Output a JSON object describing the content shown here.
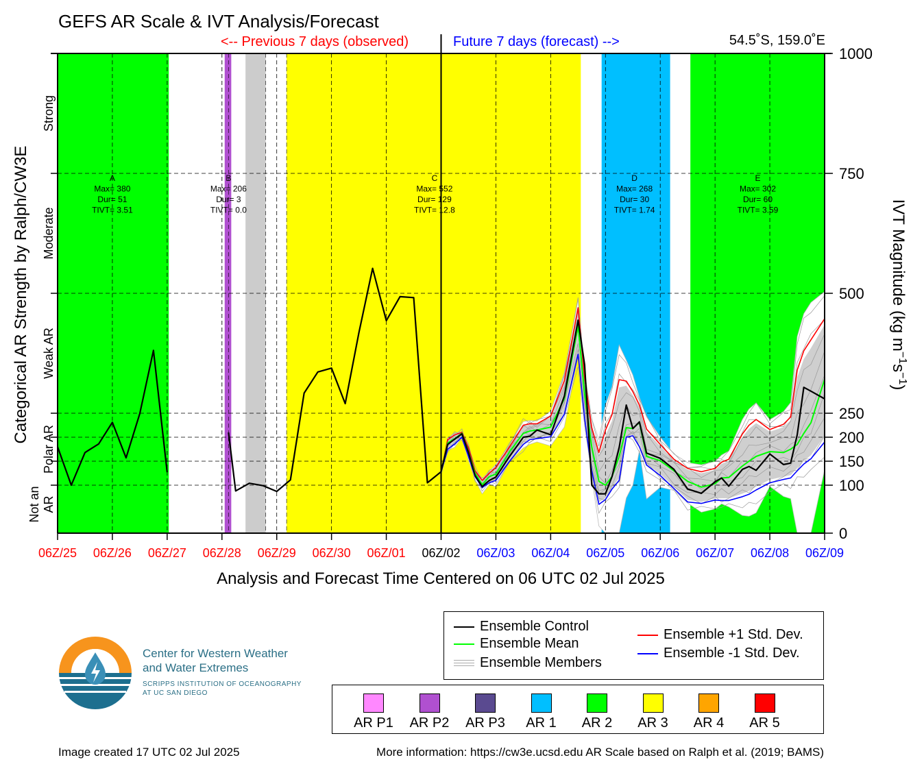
{
  "header": {
    "title": "GEFS AR Scale & IVT Analysis/Forecast",
    "prev_label": "<-- Previous 7 days (observed)",
    "future_label": "Future 7 days (forecast) -->",
    "location": "54.5˚S, 159.0˚E"
  },
  "colors": {
    "observed": "#ff0000",
    "forecast": "#0000ff",
    "ar1": "#00bfff",
    "ar2": "#00ff00",
    "ar3": "#ffff00",
    "arp2": "#b050d0",
    "missing": "#cccccc"
  },
  "chart_data": {
    "type": "line",
    "xlabel": "Analysis and Forecast Time Centered on 06 UTC 02 Jul 2025",
    "ylabel_left": "Categorical AR Strength by Ralph/CW3E",
    "ylabel_right_main": "IVT Magnitude (kg m",
    "ylabel_right_sup1": "−1",
    "ylabel_right_mid": "s",
    "ylabel_right_sup2": "−1",
    "ylabel_right_end": ")",
    "x_tick_labels": [
      "06Z/25",
      "06Z/26",
      "06Z/27",
      "06Z/28",
      "06Z/29",
      "06Z/30",
      "06Z/01",
      "06Z/02",
      "06Z/03",
      "06Z/04",
      "06Z/05",
      "06Z/06",
      "06Z/07",
      "06Z/08",
      "06Z/09"
    ],
    "x_tick_colors": [
      "#ff0000",
      "#ff0000",
      "#ff0000",
      "#ff0000",
      "#ff0000",
      "#ff0000",
      "#ff0000",
      "#000000",
      "#0000ff",
      "#0000ff",
      "#0000ff",
      "#0000ff",
      "#0000ff",
      "#0000ff",
      "#0000ff"
    ],
    "xlim_days": [
      0,
      14
    ],
    "ylim": [
      0,
      1000
    ],
    "y_ticks": [
      0,
      100,
      150,
      200,
      250,
      500,
      750,
      1000
    ],
    "category_labels": [
      {
        "label": "Strong",
        "y": 875
      },
      {
        "label": "Moderate",
        "y": 625
      },
      {
        "label": "Weak AR",
        "y": 375
      },
      {
        "label": "Polar AR",
        "y": 175
      },
      {
        "label": "Not an",
        "y": 60,
        "line2": "AR"
      }
    ],
    "bands": [
      {
        "x0": 0.0,
        "x1": 2.03,
        "category": "AR 2"
      },
      {
        "x0": 3.05,
        "x1": 3.17,
        "category": "AR P2"
      },
      {
        "x0": 3.43,
        "x1": 3.8,
        "category": "missing"
      },
      {
        "x0": 4.18,
        "x1": 9.55,
        "category": "AR 3"
      },
      {
        "x0": 9.93,
        "x1": 11.18,
        "category": "AR 1"
      },
      {
        "x0": 11.55,
        "x1": 14.0,
        "category": "AR 2"
      }
    ],
    "events": [
      {
        "id": "A",
        "x": 1.0,
        "max": "Max= 380",
        "dur": "Dur= 51",
        "tivt": "TIVT= 3.51"
      },
      {
        "id": "B",
        "x": 3.12,
        "max": "Max= 206",
        "dur": "Dur= 3",
        "tivt": "TIVT= 0.0"
      },
      {
        "id": "C",
        "x": 6.88,
        "max": "Max= 552",
        "dur": "Dur= 129",
        "tivt": "TIVT= 12.8"
      },
      {
        "id": "D",
        "x": 10.53,
        "max": "Max= 268",
        "dur": "Dur= 30",
        "tivt": "TIVT= 1.74"
      },
      {
        "id": "E",
        "x": 12.78,
        "max": "Max= 302",
        "dur": "Dur= 60",
        "tivt": "TIVT= 3.59"
      }
    ],
    "series": [
      {
        "name": "Ensemble Control",
        "color": "#000000",
        "segments": [
          {
            "x": [
              0.0,
              0.25,
              0.5,
              0.75,
              1.0,
              1.25,
              1.5,
              1.75,
              2.0
            ],
            "y": [
              180,
              100,
              168,
              186,
              231,
              157,
              249,
              381,
              127
            ]
          },
          {
            "x": [
              3.12,
              3.25,
              3.5,
              3.75,
              4.0,
              4.25,
              4.5,
              4.75,
              5.0,
              5.25,
              5.5,
              5.75,
              6.0,
              6.25,
              6.5,
              6.75,
              7.0
            ],
            "y": [
              210,
              88,
              104,
              99,
              87,
              111,
              292,
              336,
              344,
              270,
              418,
              552,
              443,
              493,
              491,
              105,
              128
            ]
          },
          {
            "x": [
              7.0,
              7.12,
              7.25,
              7.38,
              7.5,
              7.62,
              7.75,
              7.88,
              8.0,
              8.25,
              8.5,
              8.62,
              8.75,
              9.0,
              9.25,
              9.5,
              9.62,
              9.75,
              9.88,
              10.0,
              10.12,
              10.25,
              10.38,
              10.5,
              10.62,
              10.75,
              11.0,
              11.25,
              11.5,
              11.75,
              12.0,
              12.12,
              12.25,
              12.5,
              12.62,
              12.75,
              13.0,
              13.25,
              13.38,
              13.5,
              13.62,
              13.75,
              14.0
            ],
            "y": [
              128,
              185,
              196,
              207,
              168,
              120,
              97,
              110,
              117,
              160,
              200,
              202,
              215,
              205,
              286,
              444,
              351,
              100,
              82,
              82,
              118,
              178,
              267,
              218,
              232,
              167,
              156,
              133,
              92,
              83,
              107,
              115,
              98,
              133,
              139,
              131,
              165,
              143,
              146,
              205,
              304,
              296,
              280
            ]
          }
        ]
      },
      {
        "name": "Ensemble Mean",
        "color": "#00ff00",
        "x": [
          7.0,
          7.12,
          7.25,
          7.38,
          7.5,
          7.62,
          7.75,
          7.88,
          8.0,
          8.25,
          8.5,
          8.62,
          8.75,
          9.0,
          9.25,
          9.5,
          9.62,
          9.75,
          9.88,
          10.0,
          10.12,
          10.25,
          10.38,
          10.5,
          10.62,
          10.75,
          11.0,
          11.25,
          11.5,
          11.75,
          12.0,
          12.12,
          12.25,
          12.5,
          12.62,
          12.75,
          13.0,
          13.25,
          13.38,
          13.5,
          13.62,
          13.75,
          14.0
        ],
        "y": [
          128,
          188,
          197,
          208,
          170,
          125,
          101,
          118,
          123,
          170,
          208,
          213,
          215,
          221,
          281,
          432,
          290,
          180,
          108,
          100,
          118,
          160,
          220,
          218,
          231,
          160,
          151,
          130,
          108,
          96,
          103,
          115,
          116,
          140,
          150,
          160,
          170,
          168,
          175,
          185,
          208,
          230,
          321
        ]
      },
      {
        "name": "Ensemble Members",
        "color": "#aaaaaa"
      },
      {
        "name": "Ensemble +1 Std. Dev.",
        "color": "#ff0000",
        "x": [
          7.0,
          7.12,
          7.25,
          7.38,
          7.5,
          7.62,
          7.75,
          7.88,
          8.0,
          8.25,
          8.5,
          8.62,
          8.75,
          9.0,
          9.25,
          9.5,
          9.62,
          9.75,
          9.88,
          10.0,
          10.12,
          10.25,
          10.38,
          10.5,
          10.62,
          10.75,
          11.0,
          11.25,
          11.5,
          11.75,
          12.0,
          12.12,
          12.25,
          12.5,
          12.62,
          12.75,
          13.0,
          13.25,
          13.38,
          13.5,
          13.62,
          13.75,
          14.0
        ],
        "y": [
          128,
          195,
          205,
          210,
          178,
          130,
          110,
          125,
          137,
          180,
          225,
          228,
          228,
          244,
          318,
          470,
          323,
          220,
          168,
          215,
          247,
          320,
          317,
          295,
          267,
          217,
          185,
          154,
          135,
          128,
          135,
          148,
          154,
          207,
          225,
          237,
          216,
          227,
          242,
          340,
          380,
          403,
          447
        ]
      },
      {
        "name": "Ensemble -1 Std. Dev.",
        "color": "#0000ff",
        "x": [
          7.0,
          7.12,
          7.25,
          7.38,
          7.5,
          7.62,
          7.75,
          7.88,
          8.0,
          8.25,
          8.5,
          8.62,
          8.75,
          9.0,
          9.25,
          9.5,
          9.62,
          9.75,
          9.88,
          10.0,
          10.12,
          10.25,
          10.38,
          10.5,
          10.62,
          10.75,
          11.0,
          11.25,
          11.5,
          11.75,
          12.0,
          12.12,
          12.25,
          12.5,
          12.62,
          12.75,
          13.0,
          13.25,
          13.38,
          13.5,
          13.62,
          13.75,
          14.0
        ],
        "y": [
          128,
          175,
          186,
          200,
          160,
          118,
          95,
          105,
          110,
          150,
          185,
          195,
          197,
          201,
          248,
          373,
          239,
          130,
          60,
          70,
          92,
          110,
          200,
          203,
          180,
          142,
          120,
          93,
          65,
          62,
          69,
          68,
          68,
          76,
          81,
          90,
          105,
          112,
          115,
          130,
          144,
          155,
          190
        ]
      }
    ]
  },
  "legend": {
    "control": "Ensemble Control",
    "mean": "Ensemble Mean",
    "members": "Ensemble Members",
    "plus_std": "Ensemble +1 Std. Dev.",
    "minus_std": "Ensemble -1 Std. Dev."
  },
  "ar_scale": [
    {
      "label": "AR P1",
      "color": "#ff88ff"
    },
    {
      "label": "AR P2",
      "color": "#b050d0"
    },
    {
      "label": "AR P3",
      "color": "#5a4a90"
    },
    {
      "label": "AR 1",
      "color": "#00bfff"
    },
    {
      "label": "AR 2",
      "color": "#00ff00"
    },
    {
      "label": "AR 3",
      "color": "#ffff00"
    },
    {
      "label": "AR 4",
      "color": "#ffa500"
    },
    {
      "label": "AR 5",
      "color": "#ff0000"
    }
  ],
  "logo": {
    "line1": "Center for Western Weather",
    "line2": "and Water Extremes",
    "line3": "SCRIPPS INSTITUTION OF OCEANOGRAPHY",
    "line4": "AT UC SAN DIEGO"
  },
  "footer": {
    "created": "Image created 17 UTC 02 Jul 2025",
    "info": "More information: https://cw3e.ucsd.edu AR Scale based on Ralph et al. (2019; BAMS)"
  }
}
